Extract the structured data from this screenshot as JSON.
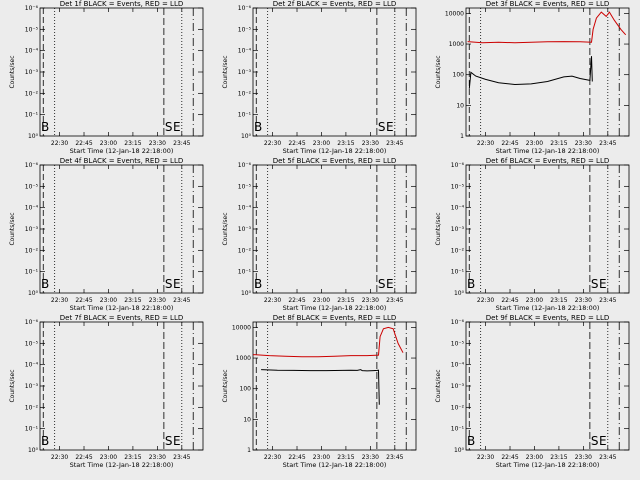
{
  "chart_data": {
    "common": {
      "ylabel": "Counts/sec",
      "xlabel": "Start Time (12-Jan-18 22:18:00)",
      "x_ticks": [
        "22:30",
        "22:45",
        "23:00",
        "23:15",
        "23:30",
        "23:45"
      ],
      "x_tick_minutes": [
        12,
        27,
        42,
        57,
        72,
        87
      ],
      "xlim_minutes": [
        0,
        100
      ],
      "empty_y_ticks": [
        "10⁰",
        "10⁻¹",
        "10⁻²",
        "10⁻³",
        "10⁻⁴",
        "10⁻⁵",
        "10⁻⁶"
      ],
      "data_y_ticks": [
        "1",
        "10",
        "100",
        "1000",
        "10000"
      ],
      "data_ylim": [
        1,
        15000
      ],
      "grid": false,
      "series": [
        {
          "name": "Events",
          "color": "#000000"
        },
        {
          "name": "LLD",
          "color": "#cc0000"
        }
      ],
      "markers": {
        "start": "S",
        "end": "E",
        "start_minute": 76,
        "end_minute": 81
      }
    },
    "panels": [
      {
        "title": "Det 1f  BLACK = Events, RED = LLD",
        "has_data": false,
        "marker_label": "B",
        "type": "line"
      },
      {
        "title": "Det 2f  BLACK = Events, RED = LLD",
        "has_data": false,
        "marker_label": "B",
        "type": "line"
      },
      {
        "title": "Det 3f  BLACK = Events, RED = LLD",
        "has_data": true,
        "marker_label": "",
        "type": "line",
        "events": [
          [
            2,
            35
          ],
          [
            3,
            120
          ],
          [
            6,
            90
          ],
          [
            12,
            70
          ],
          [
            20,
            55
          ],
          [
            30,
            48
          ],
          [
            40,
            50
          ],
          [
            50,
            60
          ],
          [
            60,
            85
          ],
          [
            65,
            90
          ],
          [
            70,
            75
          ],
          [
            76,
            65
          ],
          [
            77,
            400
          ],
          [
            77.5,
            60
          ]
        ],
        "lld": [
          [
            1,
            1200
          ],
          [
            10,
            1100
          ],
          [
            20,
            1150
          ],
          [
            30,
            1100
          ],
          [
            40,
            1150
          ],
          [
            50,
            1180
          ],
          [
            60,
            1200
          ],
          [
            70,
            1180
          ],
          [
            77,
            1150
          ],
          [
            78,
            3000
          ],
          [
            80,
            7000
          ],
          [
            83,
            11000
          ],
          [
            86,
            8000
          ],
          [
            88,
            11000
          ],
          [
            91,
            6000
          ],
          [
            95,
            3000
          ],
          [
            98,
            2000
          ]
        ]
      },
      {
        "title": "Det 4f  BLACK = Events, RED = LLD",
        "has_data": false,
        "marker_label": "B",
        "type": "line"
      },
      {
        "title": "Det 5f  BLACK = Events, RED = LLD",
        "has_data": false,
        "marker_label": "B",
        "type": "line"
      },
      {
        "title": "Det 6f  BLACK = Events, RED = LLD",
        "has_data": false,
        "marker_label": "B",
        "type": "line"
      },
      {
        "title": "Det 7f  BLACK = Events, RED = LLD",
        "has_data": false,
        "marker_label": "B",
        "type": "line"
      },
      {
        "title": "Det 8f  BLACK = Events, RED = LLD",
        "has_data": true,
        "marker_label": "",
        "type": "line",
        "events": [
          [
            5,
            420
          ],
          [
            15,
            400
          ],
          [
            25,
            395
          ],
          [
            35,
            390
          ],
          [
            45,
            390
          ],
          [
            55,
            395
          ],
          [
            60,
            400
          ],
          [
            64,
            395
          ],
          [
            66,
            420
          ],
          [
            67,
            390
          ],
          [
            70,
            380
          ],
          [
            74,
            390
          ],
          [
            76,
            395
          ],
          [
            77,
            400
          ],
          [
            77.5,
            30
          ]
        ],
        "lld": [
          [
            0,
            1300
          ],
          [
            10,
            1200
          ],
          [
            20,
            1150
          ],
          [
            30,
            1100
          ],
          [
            40,
            1100
          ],
          [
            50,
            1150
          ],
          [
            60,
            1200
          ],
          [
            70,
            1200
          ],
          [
            77,
            1250
          ],
          [
            78,
            5000
          ],
          [
            80,
            9000
          ],
          [
            83,
            10000
          ],
          [
            86,
            9000
          ],
          [
            89,
            3000
          ],
          [
            92,
            1500
          ]
        ]
      },
      {
        "title": "Det 9f  BLACK = Events, RED = LLD",
        "has_data": false,
        "marker_label": "B",
        "type": "line"
      }
    ]
  }
}
